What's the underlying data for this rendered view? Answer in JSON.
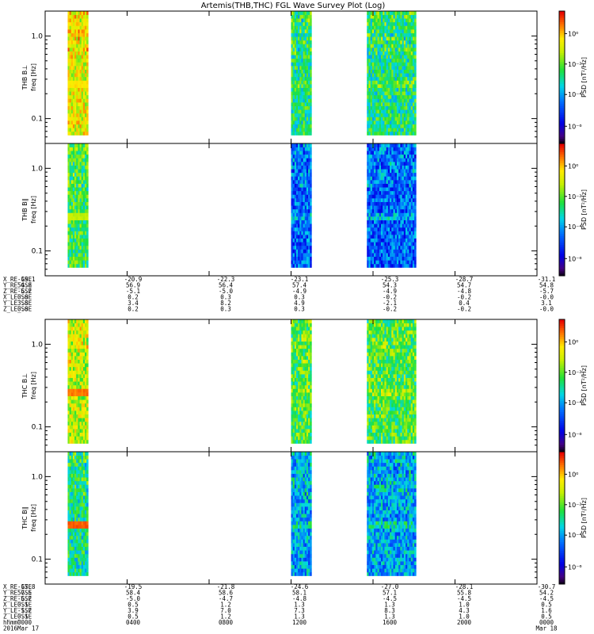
{
  "chart_data": {
    "type": "heatmap",
    "title": "Artemis(THB,THC) FGL Wave Survey Plot (Log)",
    "colorbar_label": "PSD [nT²/Hz]",
    "yscale": "log",
    "ylim": [
      0.05,
      2.0
    ],
    "yticks": [
      "1.0",
      "0.1"
    ],
    "colorbar_ticks": [
      "10⁰",
      "10⁻²",
      "10⁻⁴",
      "10⁻⁶"
    ],
    "xlim_hours": [
      0,
      24
    ],
    "data_intervals_hours": [
      [
        1.1,
        2.1
      ],
      [
        12.0,
        13.0
      ],
      [
        15.7,
        18.1
      ]
    ],
    "panels": [
      {
        "ylabel_top": "THB B⊥",
        "ylabel_bottom": "freq [Hz]",
        "level": 0.52,
        "band_level": 0.8,
        "lr": 0.75
      },
      {
        "ylabel_top": "THB B∥",
        "ylabel_bottom": "freq [Hz]",
        "level": 0.3,
        "band_level": 0.7,
        "lr": 0.55
      },
      {
        "ylabel_top": "THC B⊥",
        "ylabel_bottom": "freq [Hz]",
        "level": 0.58,
        "band_level": 0.9,
        "lr": 0.7
      },
      {
        "ylabel_top": "THC B∥",
        "ylabel_bottom": "freq [Hz]",
        "level": 0.38,
        "band_level": 0.92,
        "lr": 0.5
      }
    ],
    "orbit_blocks": [
      {
        "rows": [
          "X_RE_GSE",
          "Y_RE_GSE",
          "Z_RE_GSE",
          "X_LE_SSE",
          "Y_LE_SSE",
          "Z_LE_SSE"
        ],
        "columns": [
          [
            "-19.1",
            "54.8",
            "-5.2",
            "0.0",
            "3.8",
            "0.0"
          ],
          [
            "-20.9",
            "56.9",
            "-5.1",
            "0.2",
            "3.4",
            "0.2"
          ],
          [
            "-22.3",
            "56.4",
            "-5.0",
            "0.3",
            "8.2",
            "0.3"
          ],
          [
            "-23.1",
            "57.4",
            "-4.9",
            "0.3",
            "4.9",
            "0.3"
          ],
          [
            "-25.3",
            "54.3",
            "-4.9",
            "-0.2",
            "-2.1",
            "-0.2"
          ],
          [
            "-28.7",
            "54.7",
            "-4.8",
            "-0.2",
            "0.4",
            "-0.2"
          ],
          [
            "-31.1",
            "54.8",
            "-5.7",
            "-0.0",
            "3.1",
            "-0.0"
          ]
        ]
      },
      {
        "rows": [
          "X_RE_GSE",
          "Y_RE_GSE",
          "Z_RE_GSE",
          "X_LE_SSE",
          "Y_LE_SSE",
          "Z_LE_SSE",
          "hhmm",
          "2016"
        ],
        "columns": [
          [
            "-17.8",
            "57.5",
            "-5.2",
            "0.1",
            "-1.2",
            "0.1",
            "0000",
            "Mar 17"
          ],
          [
            "-19.5",
            "58.4",
            "-5.0",
            "0.5",
            "3.9",
            "0.5",
            "0400",
            ""
          ],
          [
            "-21.8",
            "58.6",
            "-4.7",
            "1.2",
            "7.0",
            "1.2",
            "0800",
            ""
          ],
          [
            "-24.6",
            "58.1",
            "-4.8",
            "1.3",
            "7.3",
            "1.3",
            "1200",
            ""
          ],
          [
            "-27.0",
            "57.1",
            "-4.5",
            "1.3",
            "8.3",
            "1.3",
            "1600",
            ""
          ],
          [
            "-28.1",
            "55.8",
            "-4.5",
            "1.0",
            "4.3",
            "1.0",
            "2000",
            ""
          ],
          [
            "-30.7",
            "54.2",
            "-4.5",
            "0.5",
            "1.6",
            "0.5",
            "0000",
            "Mar 18"
          ]
        ]
      }
    ]
  }
}
